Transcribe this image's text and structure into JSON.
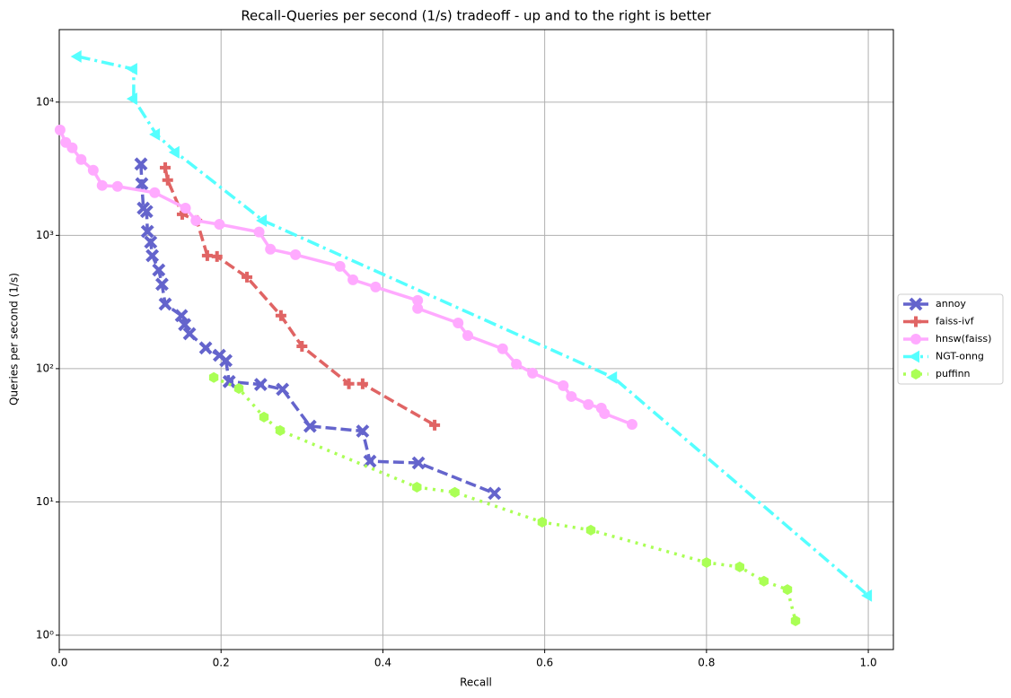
{
  "chart_data": {
    "type": "line",
    "title": "Recall-Queries per second (1/s) tradeoff - up and to the right is better",
    "x_label": "Recall",
    "y_label": "Queries per second (1/s)",
    "xlim": [
      0,
      1.031
    ],
    "ylim": [
      0.78,
      35000
    ],
    "y_scale": "log",
    "grid": true,
    "legend_position": "right",
    "xticks": [
      {
        "value": 0,
        "label": "0.0"
      },
      0.2,
      0.4,
      0.6,
      0.8,
      {
        "value": 1,
        "label": "1.0"
      }
    ],
    "yticks": [
      {
        "value": 1,
        "label": "10⁰"
      },
      {
        "value": 10,
        "label": "10¹"
      },
      {
        "value": 100,
        "label": "10²"
      },
      {
        "value": 1000,
        "label": "10³"
      },
      {
        "value": 10000,
        "label": "10⁴"
      }
    ],
    "series": [
      {
        "name": "annoy",
        "color": "#6464cc",
        "linestyle": "dashed",
        "marker": "x",
        "x": [
          0.101,
          0.102,
          0.104,
          0.108,
          0.109,
          0.113,
          0.115,
          0.123,
          0.127,
          0.131,
          0.151,
          0.155,
          0.161,
          0.181,
          0.198,
          0.206,
          0.21,
          0.249,
          0.276,
          0.31,
          0.375,
          0.384,
          0.444,
          0.538
        ],
        "values": [
          3430,
          2440,
          1600,
          1510,
          1070,
          890,
          705,
          550,
          430,
          305,
          250,
          214,
          183,
          143,
          126,
          115,
          80,
          76,
          70,
          37,
          34,
          20.2,
          19.6,
          11.6
        ]
      },
      {
        "name": "faiss-ivf",
        "color": "#e06464",
        "linestyle": "dashed",
        "marker": "plus",
        "x": [
          0.131,
          0.134,
          0.152,
          0.17,
          0.183,
          0.195,
          0.232,
          0.274,
          0.3,
          0.358,
          0.375,
          0.464
        ],
        "values": [
          3220,
          2600,
          1440,
          1290,
          705,
          695,
          486,
          250,
          147,
          77,
          77,
          37.7
        ]
      },
      {
        "name": "hnsw(faiss)",
        "color": "#ffaaff",
        "linestyle": "solid",
        "marker": "circle",
        "x": [
          0.001,
          0.008,
          0.016,
          0.027,
          0.042,
          0.053,
          0.072,
          0.118,
          0.156,
          0.169,
          0.198,
          0.247,
          0.261,
          0.292,
          0.347,
          0.363,
          0.391,
          0.443,
          0.443,
          0.493,
          0.505,
          0.548,
          0.565,
          0.585,
          0.623,
          0.633,
          0.654,
          0.67,
          0.674,
          0.708
        ],
        "values": [
          6180,
          4980,
          4540,
          3710,
          3080,
          2370,
          2330,
          2090,
          1600,
          1290,
          1210,
          1060,
          787,
          716,
          586,
          464,
          410,
          325,
          283,
          220,
          177,
          141,
          108,
          92.5,
          74.5,
          61.8,
          53.8,
          50.6,
          46,
          38.2
        ]
      },
      {
        "name": "NGT-onng",
        "color": "#55ffff",
        "linestyle": "dashdot",
        "marker": "triangle-left",
        "x": [
          0.023,
          0.092,
          0.092,
          0.12,
          0.144,
          0.252,
          0.685,
          1.0
        ],
        "values": [
          22000,
          17700,
          10600,
          5720,
          4200,
          1290,
          85.7,
          1.98
        ]
      },
      {
        "name": "puffinn",
        "color": "#aaff55",
        "linestyle": "dotted",
        "marker": "hexagon",
        "x": [
          0.191,
          0.222,
          0.253,
          0.273,
          0.442,
          0.489,
          0.597,
          0.657,
          0.8,
          0.841,
          0.871,
          0.9,
          0.91
        ],
        "values": [
          85.7,
          71,
          43.3,
          34.3,
          12.9,
          11.8,
          7.05,
          6.14,
          3.51,
          3.25,
          2.54,
          2.2,
          1.28
        ]
      }
    ]
  }
}
